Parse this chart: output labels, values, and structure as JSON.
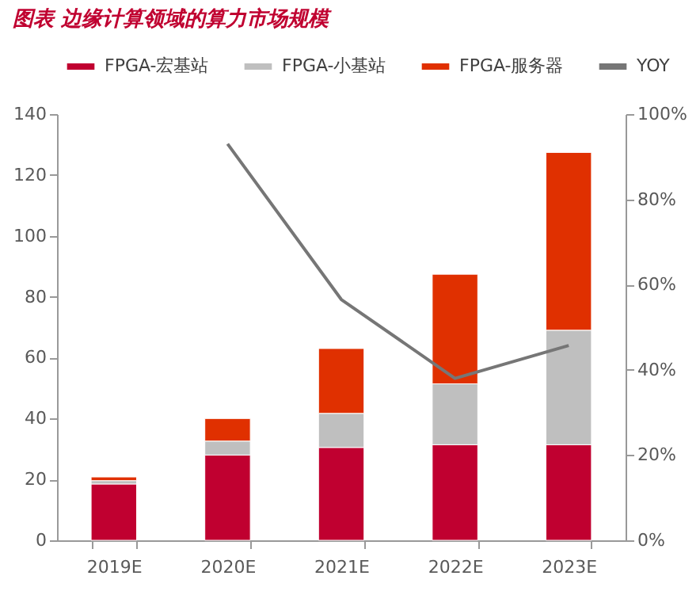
{
  "chart_data": {
    "type": "bar",
    "title": "图表    边缘计算领域的算力市场规模",
    "stacked": true,
    "categories": [
      "2019E",
      "2020E",
      "2021E",
      "2022E",
      "2023E"
    ],
    "series": [
      {
        "name": "FPGA-宏基站",
        "color": "#c00030",
        "values": [
          18.5,
          28,
          30.5,
          31.4,
          31.4
        ]
      },
      {
        "name": "FPGA-小基站",
        "color": "#bfbfbf",
        "values": [
          1.1,
          4.6,
          11.2,
          20,
          37.6
        ]
      },
      {
        "name": "FPGA-服务器",
        "color": "#e03000",
        "values": [
          1.2,
          7.4,
          21.3,
          36,
          58.4
        ]
      },
      {
        "name": "YOY",
        "type": "line",
        "axis": "y2",
        "color": "#767676",
        "values": [
          null,
          93,
          56.5,
          38,
          45.7
        ]
      }
    ],
    "ylim": [
      0,
      140
    ],
    "yticks": [
      0,
      20,
      40,
      60,
      80,
      100,
      120,
      140
    ],
    "y2lim": [
      0,
      100
    ],
    "y2ticks": [
      {
        "value": 0,
        "label": "0%"
      },
      {
        "value": 20,
        "label": "20%"
      },
      {
        "value": 40,
        "label": "40%"
      },
      {
        "value": 60,
        "label": "60%"
      },
      {
        "value": 80,
        "label": "80%"
      },
      {
        "value": 100,
        "label": "100%"
      }
    ],
    "grid": false,
    "legend": "top",
    "marker": "none",
    "line_style": "solid"
  }
}
